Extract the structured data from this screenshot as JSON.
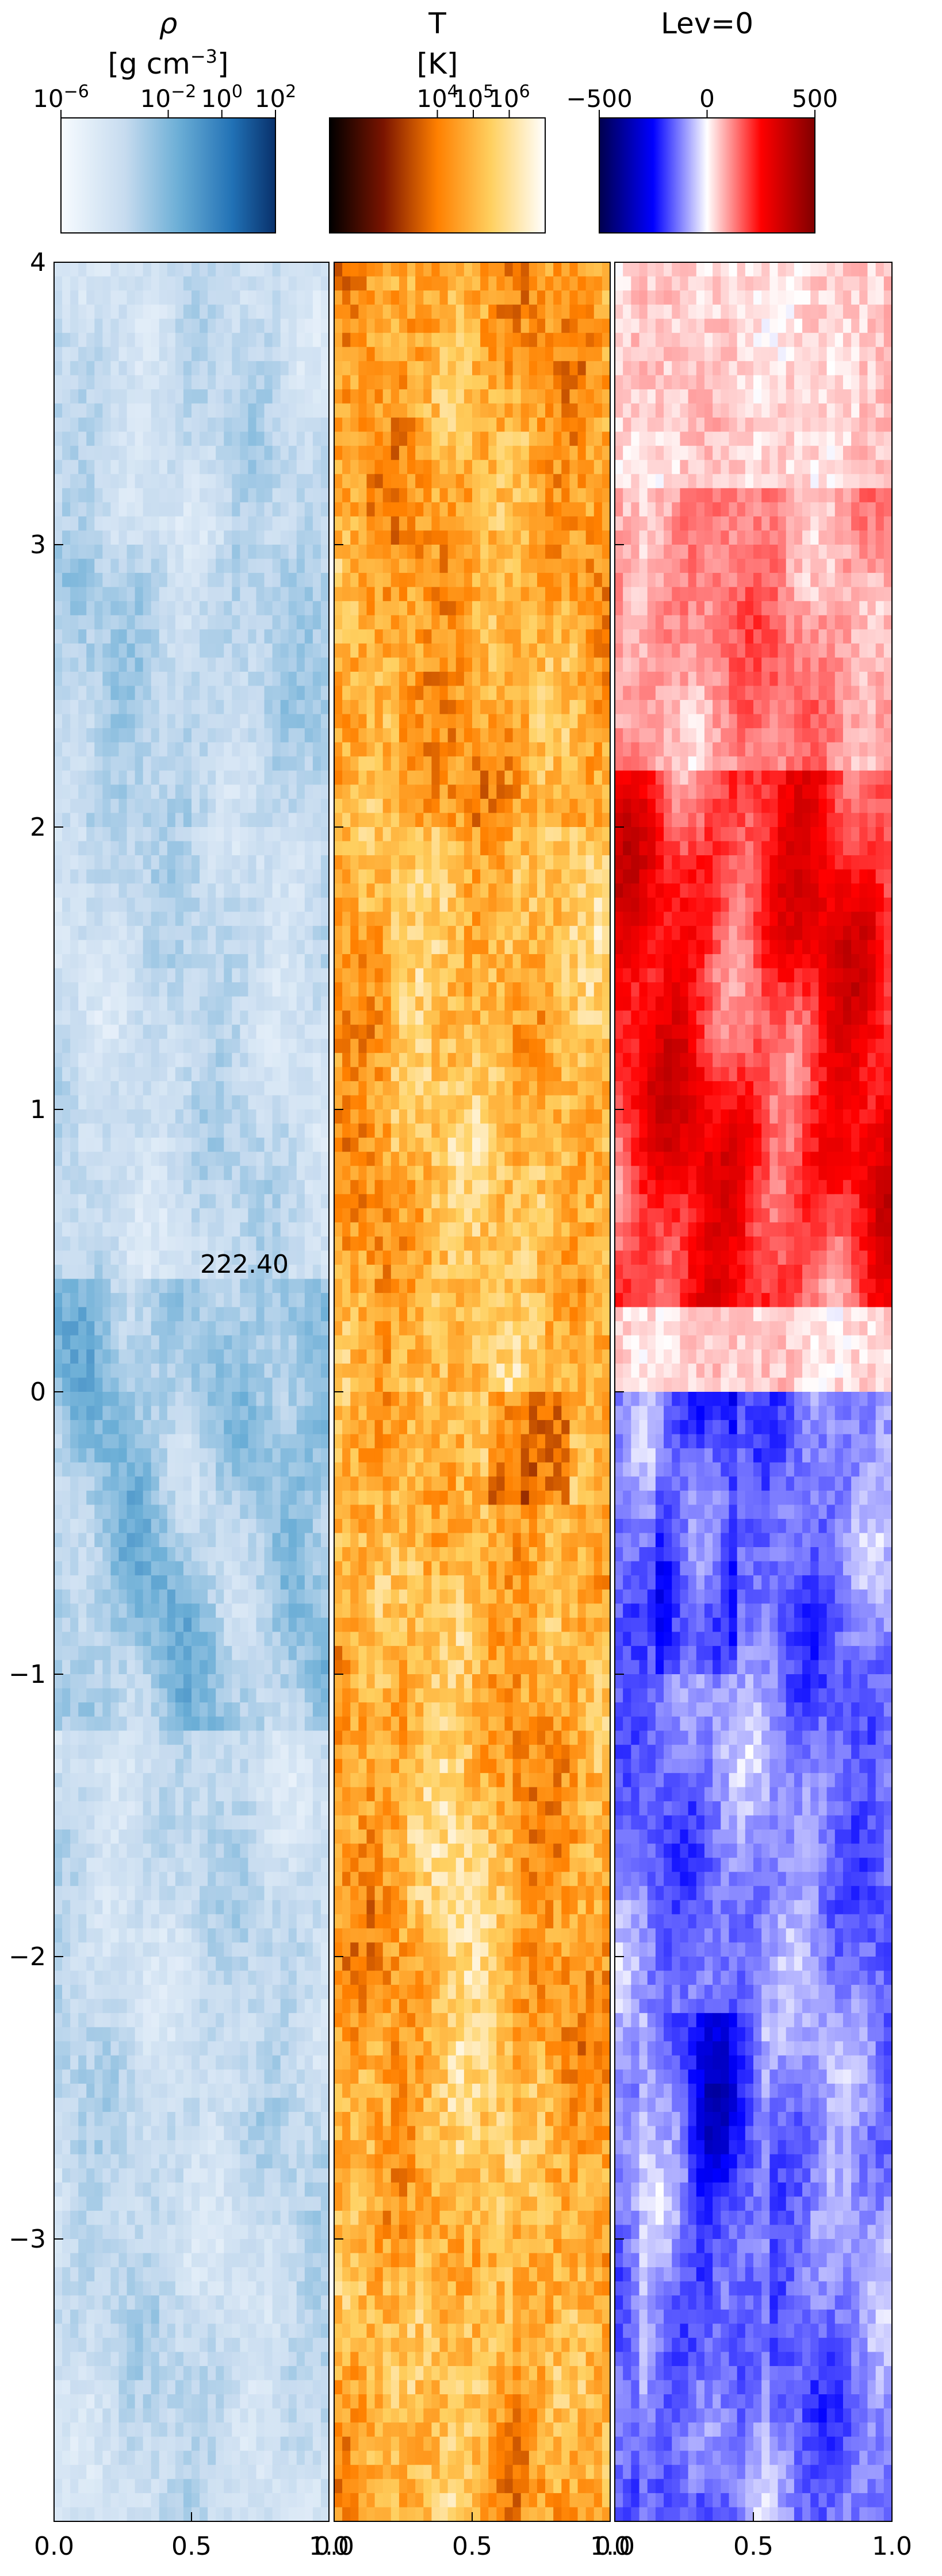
{
  "chart_data": {
    "type": "heatmap",
    "time_label": "222.40",
    "colorbars": [
      {
        "title": "ρ",
        "unit_base": "[g cm",
        "unit_sup": "−3",
        "unit_end": "]",
        "colormap": "Blues",
        "scale": "log",
        "range": [
          -6,
          2
        ],
        "ticks": [
          {
            "v": -6,
            "base": "10",
            "exp": "−6"
          },
          {
            "v": -2,
            "base": "10",
            "exp": "−2"
          },
          {
            "v": 0,
            "base": "10",
            "exp": "0"
          },
          {
            "v": 2,
            "base": "10",
            "exp": "2"
          }
        ]
      },
      {
        "title": "T",
        "unit_base": "[K]",
        "unit_sup": "",
        "unit_end": "",
        "colormap": "afmhot",
        "scale": "log",
        "range": [
          1,
          7
        ],
        "ticks": [
          {
            "v": 4,
            "base": "10",
            "exp": "4"
          },
          {
            "v": 5,
            "base": "10",
            "exp": "5"
          },
          {
            "v": 6,
            "base": "10",
            "exp": "6"
          }
        ]
      },
      {
        "title": "Lev=0",
        "unit_base": "",
        "unit_sup": "",
        "unit_end": "",
        "colormap": "seismic",
        "scale": "linear",
        "range": [
          -500,
          500
        ],
        "ticks": [
          {
            "v": -500,
            "base": "−500",
            "exp": ""
          },
          {
            "v": 0,
            "base": "0",
            "exp": ""
          },
          {
            "v": 500,
            "base": "500",
            "exp": ""
          }
        ]
      }
    ],
    "panels": [
      {
        "field": "density",
        "colormap": "Blues"
      },
      {
        "field": "temperature",
        "colormap": "afmhot"
      },
      {
        "field": "velocity",
        "colormap": "seismic"
      }
    ],
    "xlim": [
      0,
      1
    ],
    "ylim": [
      -4,
      4
    ],
    "xticks": [
      {
        "v": 0.0,
        "label": "0.0"
      },
      {
        "v": 0.5,
        "label": "0.5"
      },
      {
        "v": 1.0,
        "label": "1.0"
      }
    ],
    "yticks": [
      {
        "v": 4,
        "label": "4"
      },
      {
        "v": 3,
        "label": "3"
      },
      {
        "v": 2,
        "label": "2"
      },
      {
        "v": 1,
        "label": "1"
      },
      {
        "v": 0,
        "label": "0"
      },
      {
        "v": -1,
        "label": "−1"
      },
      {
        "v": -2,
        "label": "−2"
      },
      {
        "v": -3,
        "label": "−3"
      }
    ]
  }
}
